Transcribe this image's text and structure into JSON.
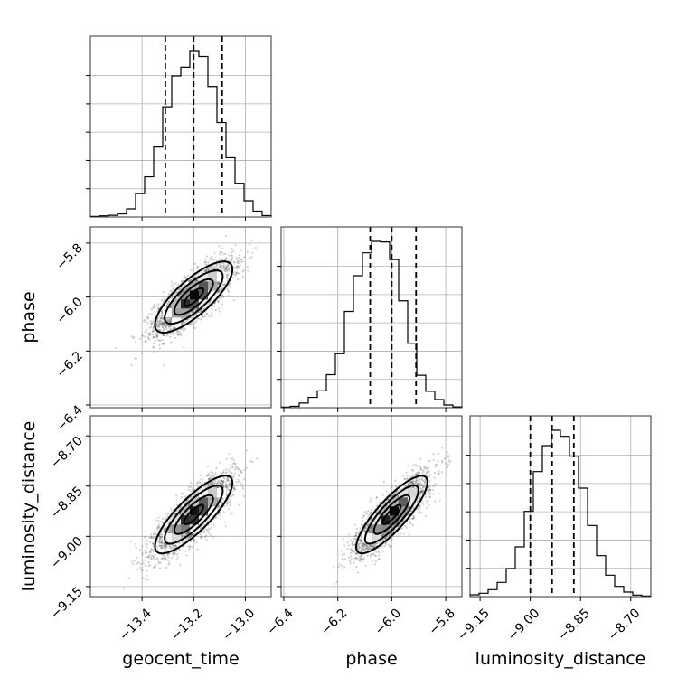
{
  "chart_data": {
    "type": "corner",
    "parameters": [
      "geocent_time",
      "phase",
      "luminosity_distance"
    ],
    "axis_labels": {
      "geocent_time": "geocent_time",
      "phase": "phase",
      "luminosity_distance": "luminosity_distance"
    },
    "ranges": {
      "geocent_time": [
        -13.6,
        -12.9
      ],
      "phase": [
        -6.41,
        -5.74
      ],
      "luminosity_distance": [
        -9.18,
        -8.64
      ]
    },
    "ticks": {
      "geocent_time": [
        -13.4,
        -13.2,
        -13.0
      ],
      "phase": [
        -6.4,
        -6.2,
        -6.0,
        -5.8
      ],
      "luminosity_distance": [
        -9.15,
        -9.0,
        -8.85,
        -8.7
      ]
    },
    "tick_labels": {
      "geocent_time": [
        "−13.4",
        "−13.2",
        "−13.0"
      ],
      "phase": [
        "−6.4",
        "−6.2",
        "−6.0",
        "−5.8"
      ],
      "luminosity_distance": [
        "−9.15",
        "−9.00",
        "−8.85",
        "−8.70"
      ]
    },
    "quantiles": {
      "geocent_time": [
        -13.31,
        -13.2,
        -13.09
      ],
      "phase": [
        -6.08,
        -6.0,
        -5.91
      ],
      "luminosity_distance": [
        -9.0,
        -8.935,
        -8.87
      ]
    },
    "histograms": {
      "geocent_time": {
        "edges": [
          -13.6,
          -13.565,
          -13.53,
          -13.495,
          -13.46,
          -13.425,
          -13.39,
          -13.355,
          -13.32,
          -13.285,
          -13.25,
          -13.215,
          -13.18,
          -13.145,
          -13.11,
          -13.075,
          -13.04,
          -13.005,
          -12.97,
          -12.935,
          -12.9
        ],
        "counts": [
          2,
          4,
          6,
          11,
          29,
          83,
          143,
          249,
          392,
          502,
          533,
          592,
          571,
          464,
          336,
          211,
          120,
          58,
          21,
          5
        ]
      },
      "phase": {
        "edges": [
          -6.41,
          -6.3765,
          -6.343,
          -6.3095,
          -6.276,
          -6.2425,
          -6.209,
          -6.1755,
          -6.142,
          -6.1085,
          -6.075,
          -6.0415,
          -6.008,
          -5.9745,
          -5.941,
          -5.9075,
          -5.874,
          -5.8405,
          -5.807,
          -5.7735,
          -5.74
        ],
        "counts": [
          2,
          5,
          17,
          38,
          62,
          121,
          198,
          353,
          484,
          568,
          610,
          608,
          543,
          392,
          236,
          119,
          60,
          30,
          10,
          3
        ]
      },
      "luminosity_distance": {
        "edges": [
          -9.18,
          -9.153,
          -9.126,
          -9.099,
          -9.072,
          -9.045,
          -9.018,
          -8.991,
          -8.964,
          -8.937,
          -8.91,
          -8.883,
          -8.856,
          -8.829,
          -8.802,
          -8.775,
          -8.748,
          -8.721,
          -8.694,
          -8.667,
          -8.64
        ],
        "counts": [
          6,
          11,
          23,
          47,
          93,
          165,
          283,
          415,
          501,
          552,
          532,
          466,
          360,
          236,
          136,
          71,
          34,
          15,
          5,
          2
        ]
      }
    },
    "joint": [
      {
        "x": "geocent_time",
        "y": "phase",
        "mean": [
          -13.2,
          -6.0
        ],
        "sd": [
          0.075,
          0.066
        ],
        "rho": 0.78
      },
      {
        "x": "geocent_time",
        "y": "luminosity_distance",
        "mean": [
          -13.2,
          -8.935
        ],
        "sd": [
          0.075,
          0.058
        ],
        "rho": 0.82
      },
      {
        "x": "phase",
        "y": "luminosity_distance",
        "mean": [
          -6.0,
          -8.935
        ],
        "sd": [
          0.066,
          0.058
        ],
        "rho": 0.84
      }
    ],
    "contour_levels": [
      0.5,
      1.0,
      1.5,
      2.0
    ],
    "grid": true
  }
}
